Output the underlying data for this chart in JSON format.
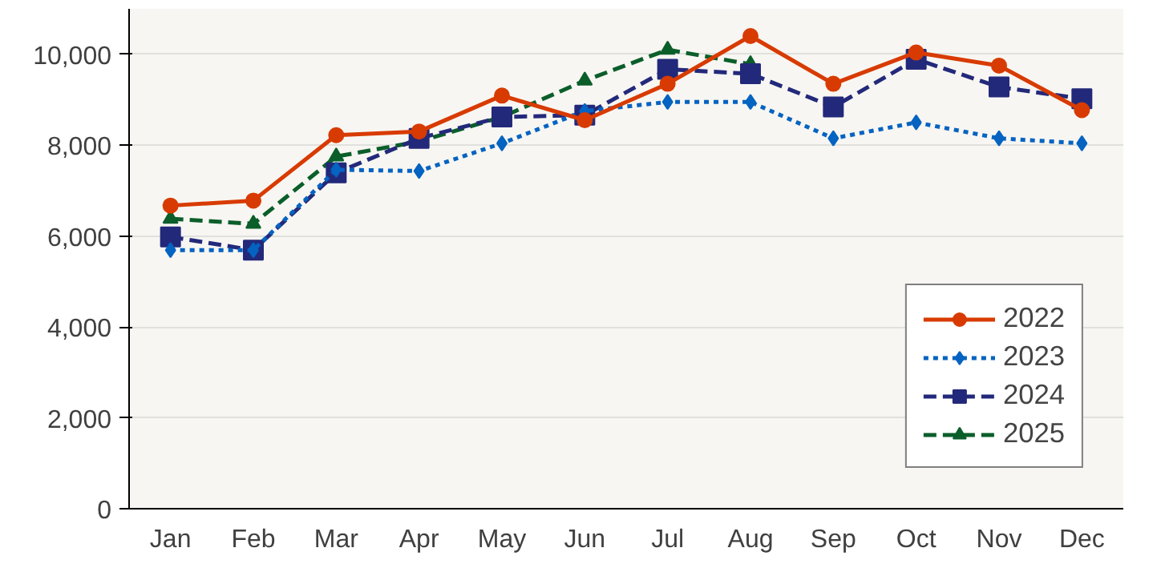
{
  "chart_data": {
    "type": "line",
    "categories": [
      "Jan",
      "Feb",
      "Mar",
      "Apr",
      "May",
      "Jun",
      "Jul",
      "Aug",
      "Sep",
      "Oct",
      "Nov",
      "Dec"
    ],
    "series": [
      {
        "name": "2022",
        "color": "#d83b01",
        "marker": "circle",
        "line_style": "solid",
        "values": [
          6670,
          6780,
          8220,
          8300,
          9090,
          8550,
          9350,
          10400,
          9350,
          10040,
          9750,
          8770
        ]
      },
      {
        "name": "2023",
        "color": "#0563c1",
        "marker": "diamond",
        "line_style": "dotted",
        "values": [
          5690,
          5690,
          7460,
          7430,
          8040,
          8750,
          8950,
          8950,
          8150,
          8500,
          8150,
          8040
        ]
      },
      {
        "name": "2024",
        "color": "#23297a",
        "marker": "square",
        "line_style": "dashed",
        "values": [
          5980,
          5690,
          7390,
          8150,
          8620,
          8660,
          9670,
          9570,
          8840,
          9890,
          9280,
          9020
        ]
      },
      {
        "name": "2025",
        "color": "#0b5e2a",
        "marker": "triangle",
        "line_style": "dashed",
        "values": [
          6380,
          6270,
          7750,
          8080,
          8620,
          9420,
          10100,
          9780,
          null,
          null,
          null,
          null
        ]
      }
    ],
    "ylim": [
      0,
      11000
    ],
    "yticks": [
      {
        "value": 0,
        "label": "0"
      },
      {
        "value": 2000,
        "label": "2,000"
      },
      {
        "value": 4000,
        "label": "4,000"
      },
      {
        "value": 6000,
        "label": "6,000"
      },
      {
        "value": 8000,
        "label": "8,000"
      },
      {
        "value": 10000,
        "label": "10,000"
      }
    ],
    "grid": "y",
    "legend": "bottom right"
  }
}
